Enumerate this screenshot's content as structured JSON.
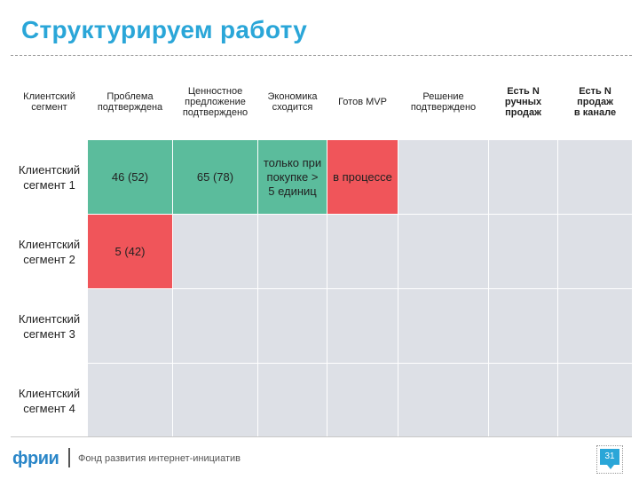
{
  "title": "Структурируем работу",
  "columns": [
    "Клиентский\nсегмент",
    "Проблема\nподтверждена",
    "Ценностное\nпредложение\nподтверждено",
    "Экономика\nсходится",
    "Готов MVP",
    "Решение\nподтверждено",
    "Есть N\nручных\nпродаж",
    "Есть N\nпродаж\nв канале"
  ],
  "rows": [
    {
      "segment": "Клиентский\nсегмент 1",
      "problem": "46 (52)",
      "value_prop": "65 (78)",
      "economics": "только при\nпокупке >\n5 единиц",
      "mvp": "в процессе",
      "solution": "",
      "manual_sales": "",
      "channel_sales": ""
    },
    {
      "segment": "Клиентский\nсегмент 2",
      "problem": "5 (42)",
      "value_prop": "",
      "economics": "",
      "mvp": "",
      "solution": "",
      "manual_sales": "",
      "channel_sales": ""
    },
    {
      "segment": "Клиентский\nсегмент 3",
      "problem": "",
      "value_prop": "",
      "economics": "",
      "mvp": "",
      "solution": "",
      "manual_sales": "",
      "channel_sales": ""
    },
    {
      "segment": "Клиентский\nсегмент 4",
      "problem": "",
      "value_prop": "",
      "economics": "",
      "mvp": "",
      "solution": "",
      "manual_sales": "",
      "channel_sales": ""
    }
  ],
  "status_colors": {
    "done": "#5bbc9c",
    "problem": "#f0555a",
    "empty": "#dde0e6"
  },
  "footer": {
    "logo": "фрии",
    "foundation": "Фонд развития интернет-инициатив",
    "page_number": "31"
  }
}
